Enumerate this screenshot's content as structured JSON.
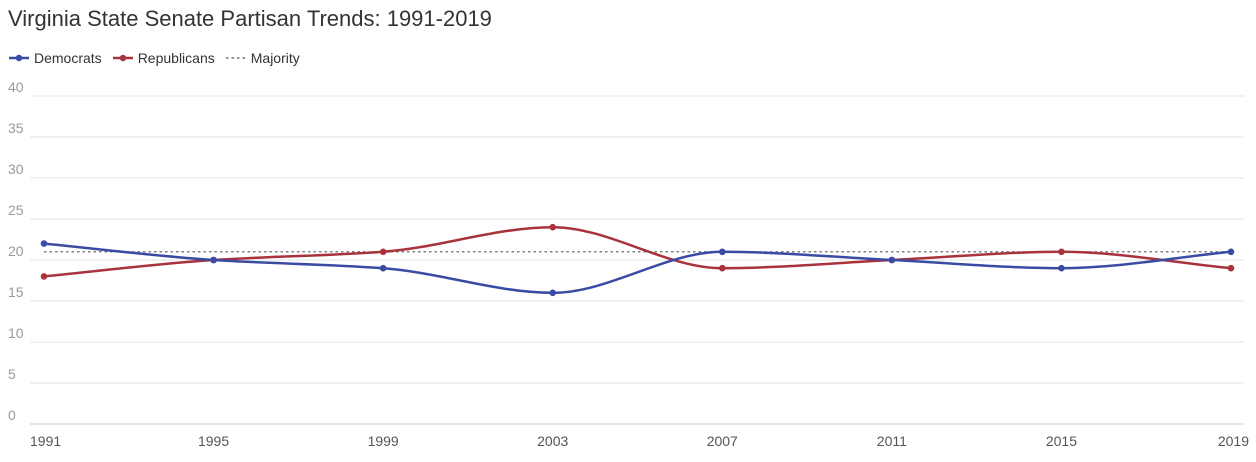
{
  "title": "Virginia State Senate Partisan Trends: 1991-2019",
  "legend": {
    "democrats": "Democrats",
    "republicans": "Republicans",
    "majority": "Majority"
  },
  "colors": {
    "democrats": "#3a4ba3",
    "republicans": "#a8333c",
    "majority": "#555555",
    "grid": "#e6e6e6"
  },
  "chart_data": {
    "type": "line",
    "title": "Virginia State Senate Partisan Trends: 1991-2019",
    "x": [
      "1991",
      "1995",
      "1999",
      "2003",
      "2007",
      "2011",
      "2015",
      "2019"
    ],
    "series": [
      {
        "name": "Democrats",
        "key": "democrats",
        "values": [
          22,
          20,
          19,
          16,
          21,
          20,
          19,
          21
        ]
      },
      {
        "name": "Republicans",
        "key": "republicans",
        "values": [
          18,
          20,
          21,
          24,
          19,
          20,
          21,
          19
        ]
      },
      {
        "name": "Majority",
        "key": "majority",
        "values": [
          21,
          21,
          21,
          21,
          21,
          21,
          21,
          21
        ],
        "style": "dotted"
      }
    ],
    "ylim": [
      0,
      40
    ],
    "yticks": [
      0,
      5,
      10,
      15,
      20,
      25,
      30,
      35,
      40
    ],
    "grid": true,
    "legend_position": "top-left",
    "xlabel": "",
    "ylabel": ""
  }
}
